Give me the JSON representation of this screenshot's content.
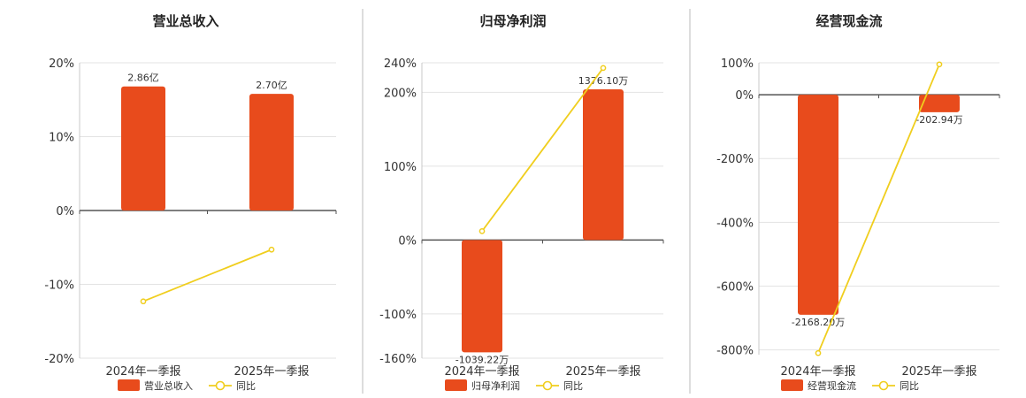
{
  "colors": {
    "bar": "#E84B1C",
    "line": "#F0CE1E",
    "axis": "#555555",
    "grid": "#E3E3E3",
    "divider": "#BBBBBB"
  },
  "chart_data": [
    {
      "type": "bar",
      "title": "营业总收入",
      "categories": [
        "2024年一季报",
        "2025年一季报"
      ],
      "bar_series": {
        "name": "营业总收入",
        "values": [
          16.8,
          15.8
        ],
        "labels": [
          "2.86亿",
          "2.70亿"
        ]
      },
      "line_series": {
        "name": "同比",
        "values": [
          -12.3,
          -5.3
        ]
      },
      "yaxis": {
        "ticks": [
          20,
          10,
          0,
          -10,
          -20
        ],
        "tick_labels": [
          "20%",
          "10%",
          "0%",
          "-10%",
          "-20%"
        ],
        "ylim": [
          -20,
          20
        ]
      },
      "grid": true,
      "legend": "bottom"
    },
    {
      "type": "bar",
      "title": "归母净利润",
      "categories": [
        "2024年一季报",
        "2025年一季报"
      ],
      "bar_series": {
        "name": "归母净利润",
        "values": [
          -152,
          204
        ],
        "labels": [
          "-1039.22万",
          "1376.10万"
        ]
      },
      "line_series": {
        "name": "同比",
        "values": [
          12,
          233
        ]
      },
      "yaxis": {
        "ticks": [
          240,
          200,
          100,
          0,
          -100,
          -160
        ],
        "tick_labels": [
          "240%",
          "200%",
          "100%",
          "0%",
          "-100%",
          "-160%"
        ],
        "ylim": [
          -160,
          240
        ]
      },
      "grid": true,
      "legend": "bottom"
    },
    {
      "type": "bar",
      "title": "经营现金流",
      "categories": [
        "2024年一季报",
        "2025年一季报"
      ],
      "bar_series": {
        "name": "经营现金流",
        "values": [
          -690,
          -55
        ],
        "labels": [
          "-2168.20万",
          "-202.94万"
        ]
      },
      "line_series": {
        "name": "同比",
        "values": [
          -810,
          95
        ]
      },
      "yaxis": {
        "ticks": [
          100,
          0,
          -200,
          -400,
          -600,
          -800
        ],
        "tick_labels": [
          "100%",
          "0%",
          "-200%",
          "-400%",
          "-600%",
          "-800%"
        ],
        "ylim": [
          -815,
          100
        ]
      },
      "grid": true,
      "legend": "bottom"
    }
  ]
}
